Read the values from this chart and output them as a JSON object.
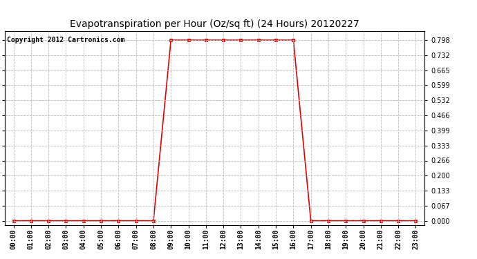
{
  "title": "Evapotranspiration per Hour (Oz/sq ft) (24 Hours) 20120227",
  "copyright": "Copyright 2012 Cartronics.com",
  "line_color": "#dd0000",
  "background_color": "#ffffff",
  "grid_color": "#bbbbbb",
  "x_labels": [
    "00:00",
    "01:00",
    "02:00",
    "03:00",
    "04:00",
    "05:00",
    "06:00",
    "07:00",
    "08:00",
    "09:00",
    "10:00",
    "11:00",
    "12:00",
    "13:00",
    "14:00",
    "15:00",
    "16:00",
    "17:00",
    "18:00",
    "19:00",
    "20:00",
    "21:00",
    "22:00",
    "23:00"
  ],
  "y_ticks": [
    0.0,
    0.067,
    0.133,
    0.2,
    0.266,
    0.333,
    0.399,
    0.466,
    0.532,
    0.599,
    0.665,
    0.732,
    0.798
  ],
  "y_min": -0.02,
  "y_max": 0.838,
  "hours": [
    0,
    1,
    2,
    3,
    4,
    5,
    6,
    7,
    8,
    9,
    10,
    11,
    12,
    13,
    14,
    15,
    16,
    17,
    18,
    19,
    20,
    21,
    22,
    23
  ],
  "values": [
    0.0,
    0.0,
    0.0,
    0.0,
    0.0,
    0.0,
    0.0,
    0.0,
    0.0,
    0.798,
    0.798,
    0.798,
    0.798,
    0.798,
    0.798,
    0.798,
    0.798,
    0.0,
    0.0,
    0.0,
    0.0,
    0.0,
    0.0,
    0.0
  ],
  "title_fontsize": 10,
  "tick_fontsize": 7,
  "copyright_fontsize": 7
}
